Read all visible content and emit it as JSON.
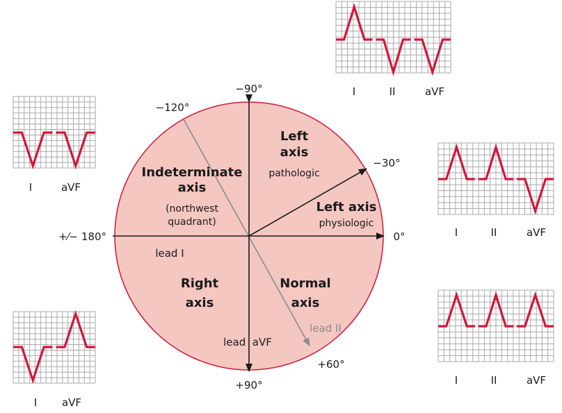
{
  "colors": {
    "circle_fill": "#f4c7c0",
    "circle_stroke": "#d3153a",
    "axis": "#1a1a1a",
    "lead_ii_axis": "#8c8c8c",
    "trace": "#d3153a",
    "grid": "#a9a9a9"
  },
  "degrees": {
    "minus90": "−90°",
    "minus120": "−120°",
    "minus30": "−30°",
    "zero": "0°",
    "plus_minus_180_sign": "+⁄−",
    "plus_minus_180": "180°",
    "plus60": "+60°",
    "plus90": "+90°"
  },
  "regions": {
    "left_axis_line1": "Left",
    "left_axis_line2": "axis",
    "left_axis_sub": "pathologic",
    "left_axis_phys": "Left axis",
    "left_axis_phys_sub": "physiologic",
    "indeterminate_line1": "Indeterminate",
    "indeterminate_line2": "axis",
    "indeterminate_sub1": "(northwest",
    "indeterminate_sub2": "quadrant)",
    "right_axis_line1": "Right",
    "right_axis_line2": "axis",
    "normal_axis_line1": "Normal",
    "normal_axis_line2": "axis"
  },
  "lead_labels": {
    "lead_i": "lead I",
    "lead_avf": "lead  aVF",
    "lead_ii": "lead II"
  },
  "strips": {
    "top_center": [
      "I",
      "II",
      "aVF"
    ],
    "right_upper": [
      "I",
      "II",
      "aVF"
    ],
    "right_lower": [
      "I",
      "II",
      "aVF"
    ],
    "left_upper": [
      "I",
      "aVF"
    ],
    "left_lower": [
      "I",
      "aVF"
    ]
  }
}
